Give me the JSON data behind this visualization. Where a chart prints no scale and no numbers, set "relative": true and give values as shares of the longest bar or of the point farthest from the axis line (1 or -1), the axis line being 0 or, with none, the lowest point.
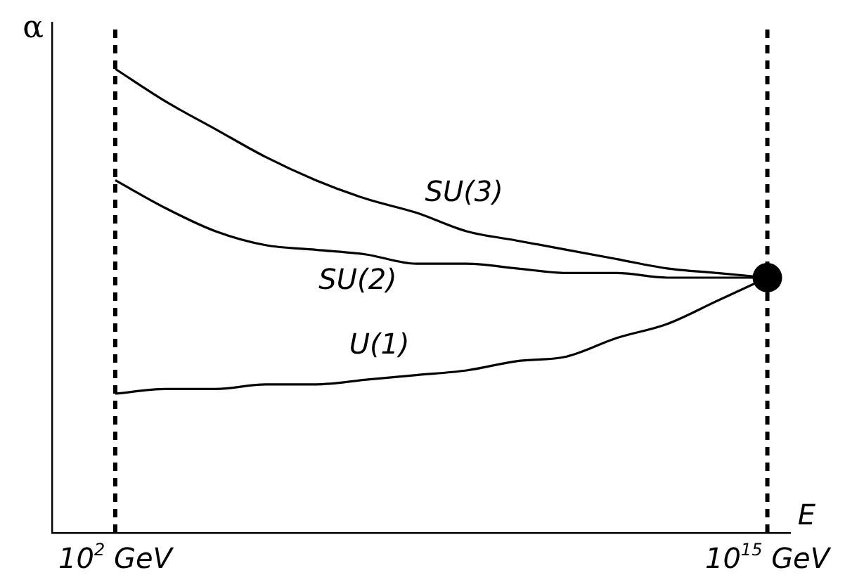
{
  "chart_data": {
    "type": "line",
    "relative": true,
    "xlabel": "E",
    "ylabel": "α",
    "categories": [
      "10$^{2}$ GeV",
      null,
      null,
      null,
      null,
      null,
      null,
      null,
      null,
      null,
      null,
      null,
      null,
      "10$^{15}$ GeV"
    ],
    "grid": false,
    "legend": false,
    "marker": "none",
    "line_style": "solid",
    "ref_lines": [
      {
        "axis": "x",
        "value": "10$^{2}$ GeV",
        "color": "#000000",
        "line_style": "dashed"
      },
      {
        "axis": "x",
        "value": "10$^{15}$ GeV",
        "color": "#000000",
        "line_style": "dashed"
      }
    ],
    "series": [
      {
        "name": "SU(3)",
        "color": "#000000",
        "values": [
          1.0,
          0.93,
          0.87,
          0.81,
          0.76,
          0.72,
          0.69,
          0.65,
          0.63,
          0.61,
          0.59,
          0.57,
          0.56,
          0.55
        ]
      },
      {
        "name": "SU(2)",
        "color": "#000000",
        "values": [
          0.76,
          0.7,
          0.65,
          0.62,
          0.61,
          0.6,
          0.58,
          0.58,
          0.57,
          0.56,
          0.56,
          0.55,
          0.55,
          0.55
        ]
      },
      {
        "name": "U(1)",
        "color": "#000000",
        "values": [
          0.3,
          0.31,
          0.31,
          0.32,
          0.32,
          0.33,
          0.34,
          0.35,
          0.37,
          0.38,
          0.42,
          0.45,
          0.5,
          0.55
        ]
      },
      {
        "type": "scatter",
        "marker": "circle",
        "color": "#000000",
        "x": [
          "10$^{15}$ GeV"
        ],
        "values": [
          0.55
        ]
      }
    ]
  }
}
